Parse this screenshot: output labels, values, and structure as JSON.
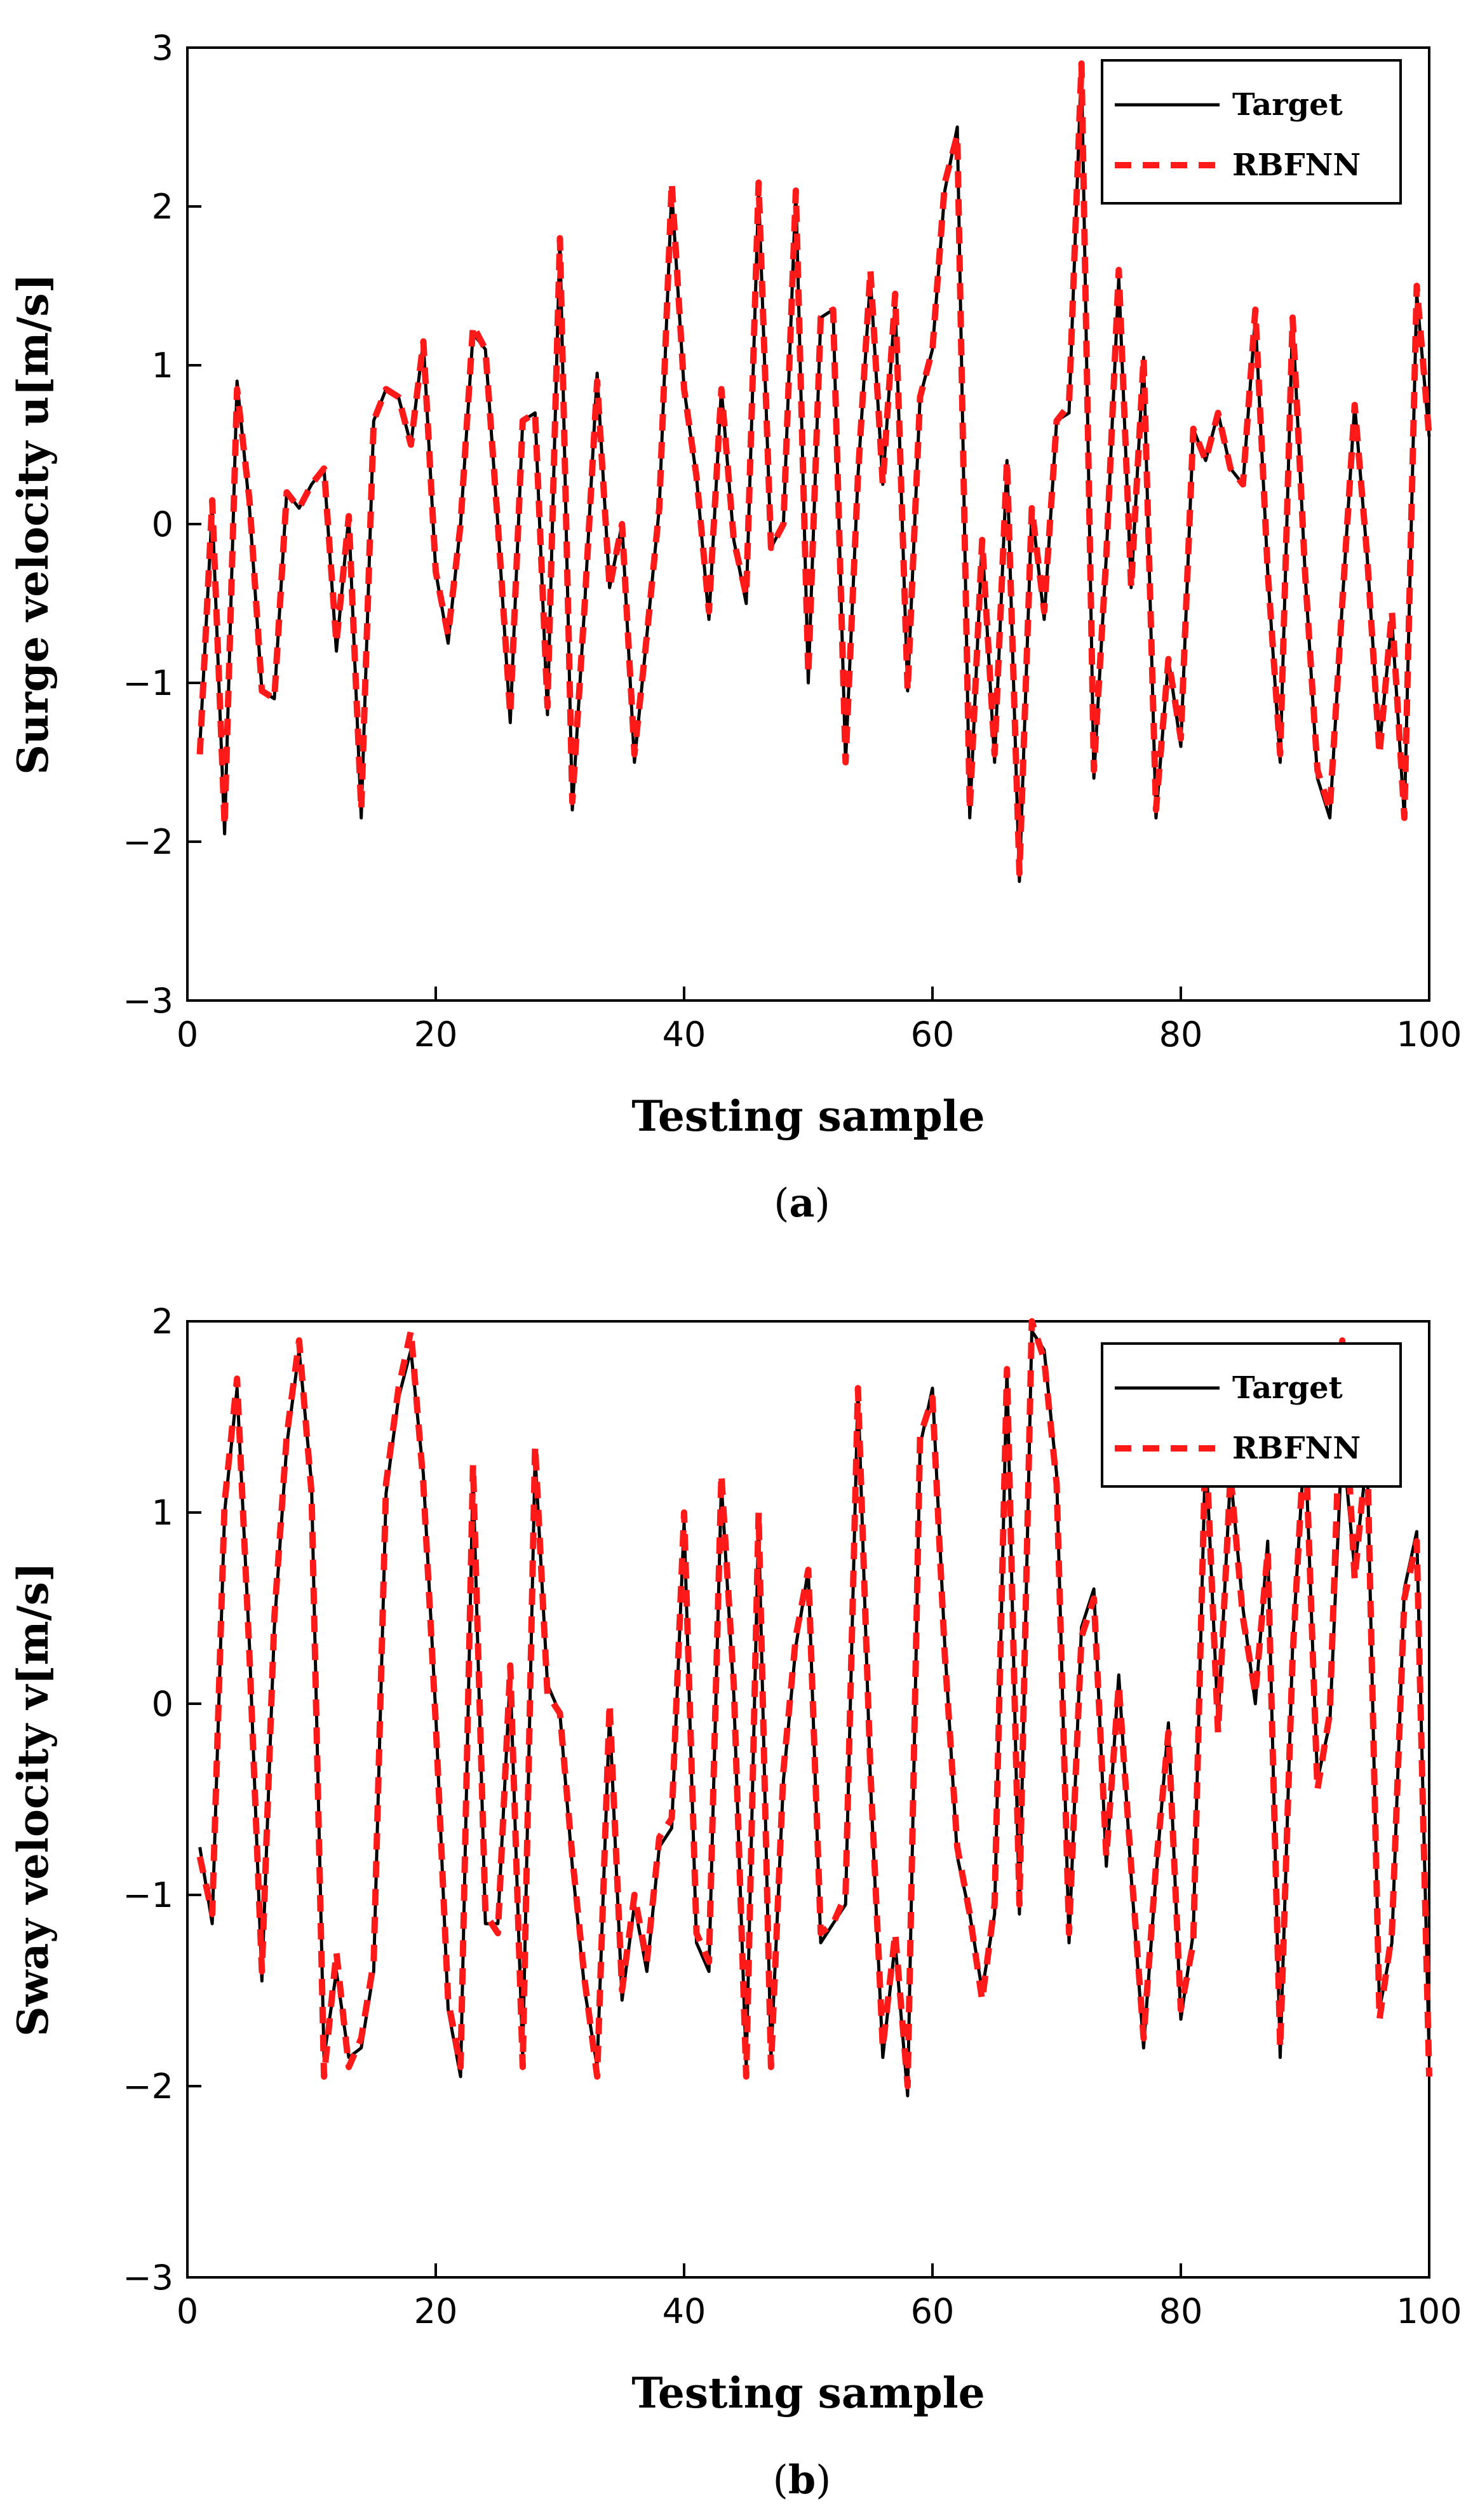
{
  "colors": {
    "target": "#000000",
    "rbfnn": "#ff1a1a"
  },
  "chart_data": [
    {
      "type": "line",
      "panel": "(a)",
      "caption_letter": "a",
      "xlabel": "Testing sample",
      "ylabel": "Surge velocity u[m/s]",
      "xlim": [
        0,
        100
      ],
      "ylim": [
        -3,
        3
      ],
      "xticks": [
        "0",
        "20",
        "40",
        "60",
        "80",
        "100"
      ],
      "yticks": [
        "3",
        "2",
        "1",
        "0",
        "−1",
        "−2",
        "−3"
      ],
      "legend": {
        "position": "top-right",
        "entries": [
          "Target",
          "RBFNN"
        ]
      },
      "x": [
        1,
        2,
        3,
        4,
        5,
        6,
        7,
        8,
        9,
        10,
        11,
        12,
        13,
        14,
        15,
        16,
        17,
        18,
        19,
        20,
        21,
        22,
        23,
        24,
        25,
        26,
        27,
        28,
        29,
        30,
        31,
        32,
        33,
        34,
        35,
        36,
        37,
        38,
        39,
        40,
        41,
        42,
        43,
        44,
        45,
        46,
        47,
        48,
        49,
        50,
        51,
        52,
        53,
        54,
        55,
        56,
        57,
        58,
        59,
        60,
        61,
        62,
        63,
        64,
        65,
        66,
        67,
        68,
        69,
        70,
        71,
        72,
        73,
        74,
        75,
        76,
        77,
        78,
        79,
        80,
        81,
        82,
        83,
        84,
        85,
        86,
        87,
        88,
        89,
        90,
        91,
        92,
        93,
        94,
        95,
        96,
        97,
        98,
        99,
        100
      ],
      "series": [
        {
          "name": "Target",
          "values": [
            -1.4,
            0.1,
            -1.95,
            0.9,
            0.1,
            -1.05,
            -1.1,
            0.2,
            0.1,
            0.25,
            0.35,
            -0.8,
            0.05,
            -1.85,
            0.65,
            0.85,
            0.8,
            0.5,
            1.15,
            -0.3,
            -0.75,
            0.0,
            1.2,
            1.1,
            0.0,
            -1.25,
            0.65,
            0.7,
            -1.2,
            1.8,
            -1.8,
            -0.5,
            0.95,
            -0.4,
            0.0,
            -1.5,
            -0.7,
            0.1,
            2.1,
            0.85,
            0.3,
            -0.6,
            0.85,
            -0.1,
            -0.5,
            2.1,
            -0.15,
            0.0,
            2.1,
            -1.0,
            1.3,
            1.35,
            -1.5,
            0.3,
            1.55,
            0.25,
            1.4,
            -1.05,
            0.8,
            1.1,
            2.1,
            2.5,
            -1.85,
            -0.1,
            -1.5,
            0.4,
            -2.25,
            0.1,
            -0.6,
            0.65,
            0.7,
            2.9,
            -1.6,
            -0.2,
            1.55,
            -0.4,
            1.05,
            -1.85,
            -0.85,
            -1.4,
            0.6,
            0.4,
            0.7,
            0.35,
            0.25,
            1.3,
            -0.3,
            -1.5,
            1.3,
            -0.3,
            -1.6,
            -1.85,
            -0.5,
            0.75,
            -0.2,
            -1.4,
            -0.6,
            -1.85,
            1.45,
            0.55
          ]
        },
        {
          "name": "RBFNN",
          "values": [
            -1.45,
            0.15,
            -1.9,
            0.85,
            0.15,
            -1.05,
            -1.1,
            0.2,
            0.1,
            0.25,
            0.35,
            -0.75,
            0.05,
            -1.8,
            0.65,
            0.85,
            0.8,
            0.5,
            1.15,
            -0.3,
            -0.7,
            0.0,
            1.25,
            1.1,
            0.0,
            -1.2,
            0.65,
            0.7,
            -1.15,
            1.8,
            -1.75,
            -0.5,
            0.9,
            -0.4,
            0.0,
            -1.45,
            -0.7,
            0.1,
            2.15,
            0.85,
            0.3,
            -0.55,
            0.85,
            -0.1,
            -0.45,
            2.15,
            -0.15,
            0.0,
            2.1,
            -0.95,
            1.3,
            1.35,
            -1.5,
            0.3,
            1.6,
            0.25,
            1.45,
            -1.05,
            0.8,
            1.1,
            2.15,
            2.45,
            -1.8,
            -0.1,
            -1.45,
            0.4,
            -2.2,
            0.1,
            -0.55,
            0.65,
            0.75,
            2.9,
            -1.55,
            -0.2,
            1.6,
            -0.4,
            1.05,
            -1.8,
            -0.85,
            -1.35,
            0.6,
            0.4,
            0.7,
            0.35,
            0.25,
            1.35,
            -0.3,
            -1.45,
            1.3,
            -0.3,
            -1.55,
            -1.8,
            -0.5,
            0.75,
            -0.2,
            -1.45,
            -0.55,
            -1.85,
            1.5,
            0.55
          ]
        }
      ]
    },
    {
      "type": "line",
      "panel": "(b)",
      "caption_letter": "b",
      "xlabel": "Testing sample",
      "ylabel": "Sway velocity v[m/s]",
      "xlim": [
        0,
        100
      ],
      "ylim": [
        -3,
        2
      ],
      "xticks": [
        "0",
        "20",
        "40",
        "60",
        "80",
        "100"
      ],
      "yticks": [
        "2",
        "1",
        "0",
        "−1",
        "−2",
        "−3"
      ],
      "legend": {
        "position": "top-right",
        "entries": [
          "Target",
          "RBFNN"
        ]
      },
      "x": [
        1,
        2,
        3,
        4,
        5,
        6,
        7,
        8,
        9,
        10,
        11,
        12,
        13,
        14,
        15,
        16,
        17,
        18,
        19,
        20,
        21,
        22,
        23,
        24,
        25,
        26,
        27,
        28,
        29,
        30,
        31,
        32,
        33,
        34,
        35,
        36,
        37,
        38,
        39,
        40,
        41,
        42,
        43,
        44,
        45,
        46,
        47,
        48,
        49,
        50,
        51,
        52,
        53,
        54,
        55,
        56,
        57,
        58,
        59,
        60,
        61,
        62,
        63,
        64,
        65,
        66,
        67,
        68,
        69,
        70,
        71,
        72,
        73,
        74,
        75,
        76,
        77,
        78,
        79,
        80,
        81,
        82,
        83,
        84,
        85,
        86,
        87,
        88,
        89,
        90,
        91,
        92,
        93,
        94,
        95,
        96,
        97,
        98,
        99,
        100
      ],
      "series": [
        {
          "name": "Target",
          "values": [
            -0.75,
            -1.15,
            1.0,
            1.65,
            0.3,
            -1.45,
            0.4,
            1.35,
            1.85,
            1.15,
            -1.85,
            -1.4,
            -1.85,
            -1.8,
            -1.4,
            1.1,
            1.6,
            1.85,
            1.2,
            -0.05,
            -1.6,
            -1.95,
            1.2,
            -1.15,
            -1.15,
            0.15,
            -1.85,
            1.3,
            0.1,
            -0.05,
            -0.85,
            -1.5,
            -1.9,
            -0.05,
            -1.55,
            -1.05,
            -1.4,
            -0.75,
            -0.65,
            0.95,
            -1.25,
            -1.4,
            1.15,
            0.05,
            -1.9,
            0.95,
            -1.85,
            -0.4,
            0.3,
            0.7,
            -1.25,
            -1.15,
            -1.05,
            1.65,
            -0.4,
            -1.85,
            -1.25,
            -2.05,
            1.35,
            1.65,
            0.3,
            -0.8,
            -1.1,
            -1.5,
            -1.1,
            1.75,
            -1.1,
            1.95,
            1.85,
            1.2,
            -1.25,
            0.4,
            0.6,
            -0.85,
            0.15,
            -0.9,
            -1.8,
            -0.9,
            -0.1,
            -1.65,
            -1.2,
            1.35,
            -0.1,
            1.2,
            0.5,
            0.0,
            0.85,
            -1.85,
            0.3,
            1.4,
            -0.4,
            -0.1,
            1.4,
            0.7,
            1.3,
            -1.6,
            -1.25,
            0.6,
            0.9,
            -1.85
          ]
        },
        {
          "name": "RBFNN",
          "values": [
            -0.8,
            -1.1,
            1.05,
            1.7,
            0.25,
            -1.4,
            0.45,
            1.4,
            1.9,
            1.1,
            -1.95,
            -1.3,
            -1.9,
            -1.75,
            -1.35,
            1.15,
            1.65,
            1.95,
            1.15,
            -0.1,
            -1.55,
            -1.9,
            1.25,
            -1.1,
            -1.2,
            0.2,
            -1.9,
            1.35,
            0.05,
            -0.05,
            -0.8,
            -1.45,
            -1.95,
            0.0,
            -1.5,
            -1.0,
            -1.35,
            -0.7,
            -0.6,
            1.0,
            -1.2,
            -1.35,
            1.2,
            0.1,
            -1.95,
            1.0,
            -1.9,
            -0.35,
            0.35,
            0.7,
            -1.2,
            -1.15,
            -1.0,
            1.65,
            -0.35,
            -1.8,
            -1.2,
            -2.0,
            1.4,
            1.6,
            0.25,
            -0.75,
            -1.1,
            -1.55,
            -1.05,
            1.75,
            -1.05,
            2.0,
            1.8,
            1.15,
            -1.2,
            0.35,
            0.55,
            -0.8,
            0.1,
            -0.85,
            -1.75,
            -0.85,
            -0.15,
            -1.6,
            -1.25,
            1.4,
            -0.15,
            1.2,
            0.45,
            0.05,
            0.8,
            -1.8,
            0.25,
            1.45,
            -0.45,
            -0.05,
            1.9,
            0.65,
            1.35,
            -1.65,
            -1.2,
            0.55,
            0.85,
            -1.95
          ]
        }
      ]
    }
  ]
}
